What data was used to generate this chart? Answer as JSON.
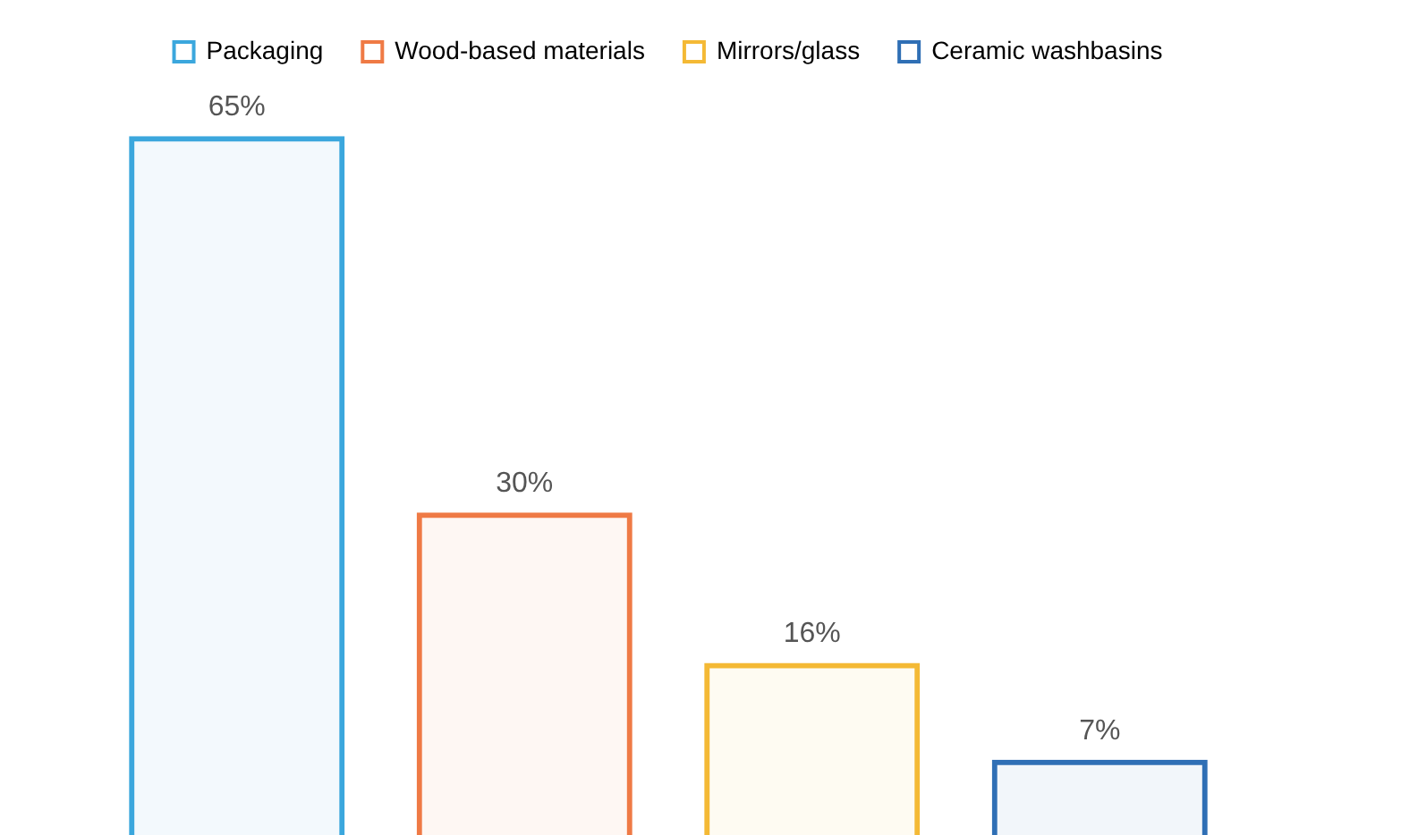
{
  "chart_data": {
    "type": "bar",
    "categories": [
      null,
      null,
      null,
      null
    ],
    "series": [
      {
        "name": "Packaging",
        "color": "#3ba7dd",
        "values": [
          65,
          null,
          null,
          null
        ],
        "value_labels": [
          "65%",
          null,
          null,
          null
        ]
      },
      {
        "name": "Wood-based materials",
        "color": "#ef7a45",
        "values": [
          null,
          30,
          null,
          null
        ],
        "value_labels": [
          null,
          "30%",
          null,
          null
        ]
      },
      {
        "name": "Mirrors/glass",
        "color": "#f4b935",
        "values": [
          null,
          null,
          16,
          null
        ],
        "value_labels": [
          null,
          null,
          "16%",
          null
        ]
      },
      {
        "name": "Ceramic washbasins",
        "color": "#2f6fb5",
        "values": [
          null,
          null,
          null,
          7
        ],
        "value_labels": [
          null,
          null,
          null,
          "7%"
        ]
      }
    ],
    "legend": "top",
    "stacked": true,
    "tick_labels": false,
    "grid": false
  }
}
